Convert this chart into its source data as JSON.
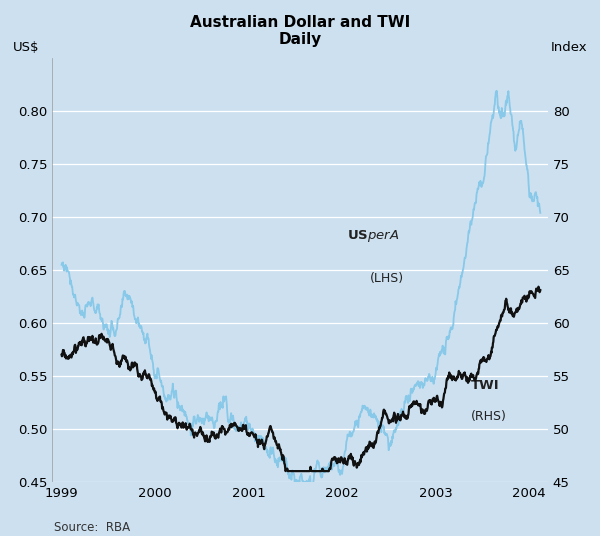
{
  "title": "Australian Dollar and TWI",
  "subtitle": "Daily",
  "ylabel_left": "US$",
  "ylabel_right": "Index",
  "source": "Source:  RBA",
  "background_color": "#cce0f0",
  "plot_background_color": "#cce0f0",
  "lhs_color": "#88c8e8",
  "rhs_color": "#111111",
  "lhs_label": "US$ per A$\n(LHS)",
  "rhs_label": "TWI\n(RHS)",
  "ylim_left": [
    0.45,
    0.85
  ],
  "ylim_right": [
    45,
    85
  ],
  "yticks_left": [
    0.45,
    0.5,
    0.55,
    0.6,
    0.65,
    0.7,
    0.75,
    0.8
  ],
  "yticks_right": [
    45,
    50,
    55,
    60,
    65,
    70,
    75,
    80
  ],
  "grid_color": "#ffffff",
  "lhs_linewidth": 1.3,
  "rhs_linewidth": 1.6,
  "xlim": [
    1998.9,
    2004.2
  ],
  "xtick_positions": [
    1999.0,
    2000.0,
    2001.0,
    2002.0,
    2003.0,
    2004.0
  ],
  "xtick_labels": [
    "1999",
    "2000",
    "2001",
    "2002",
    "2003",
    "2004"
  ]
}
